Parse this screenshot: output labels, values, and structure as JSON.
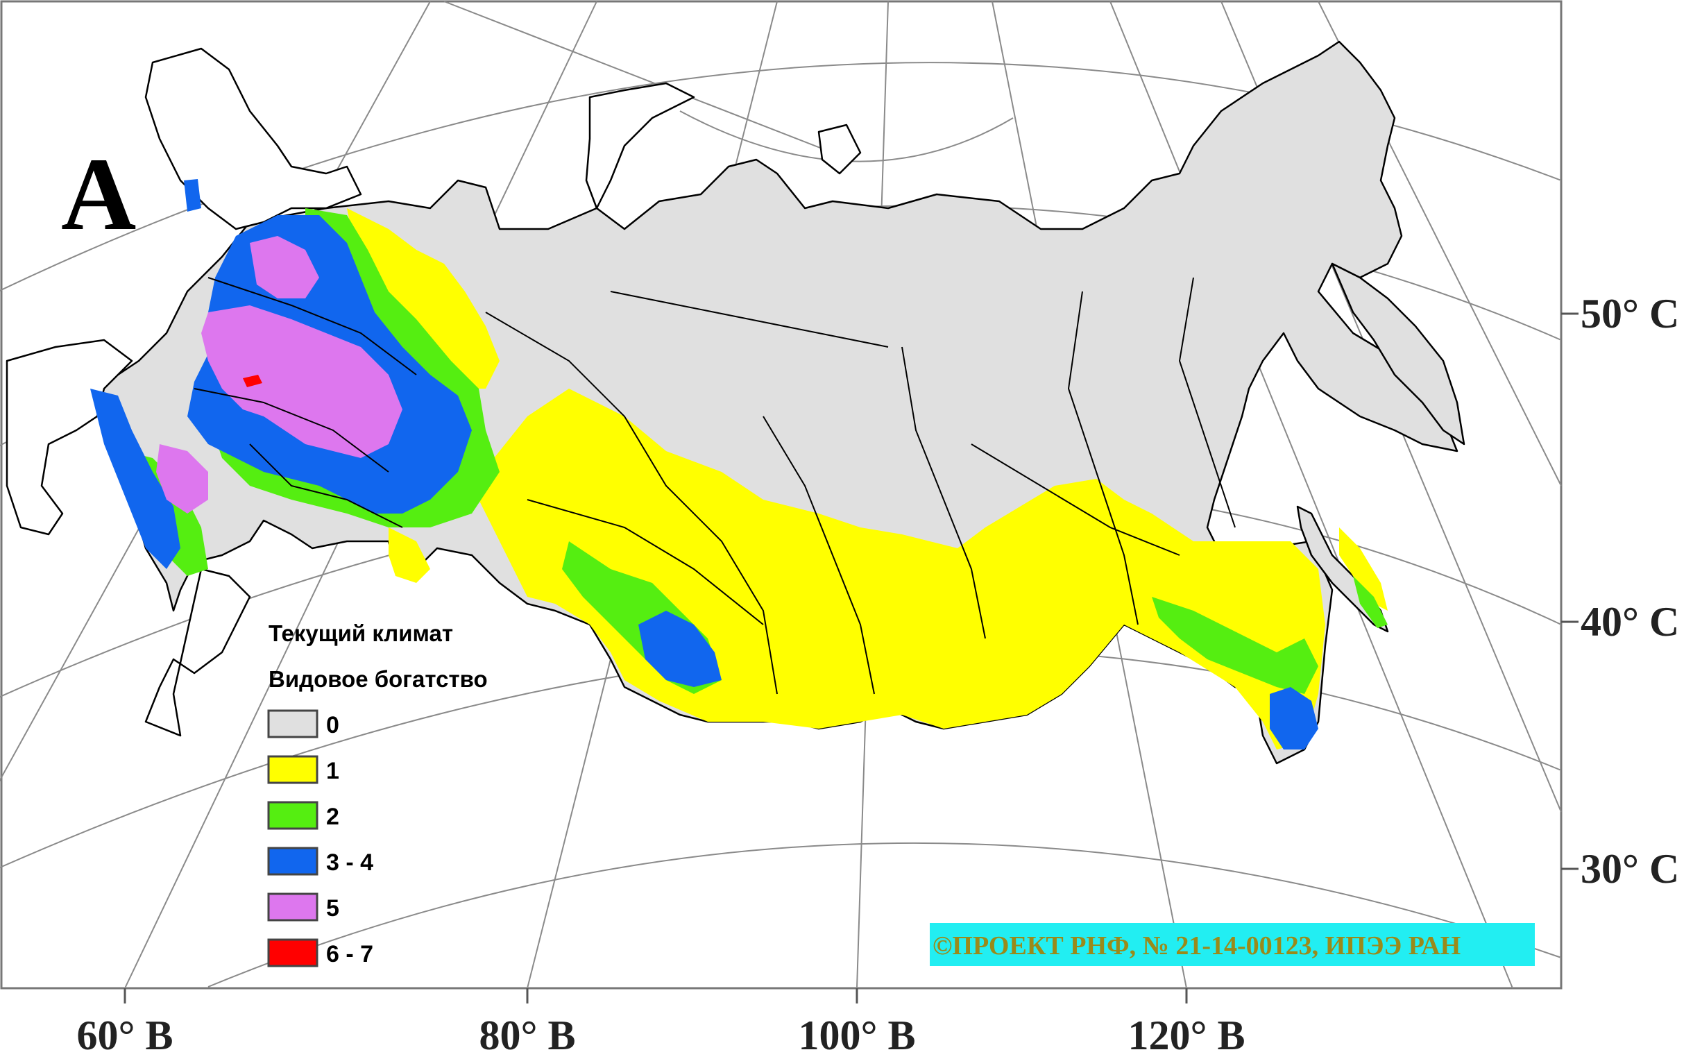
{
  "panel_letter": "A",
  "colors": {
    "land_zero": "#e0e0e0",
    "outline": "#000000",
    "graticule": "#8a8a8a",
    "credit_bg": "#22eef2"
  },
  "latitude_labels": [
    "50° С",
    "40° С",
    "30° С"
  ],
  "longitude_labels": [
    "60° В",
    "80° В",
    "100° В",
    "120° В"
  ],
  "legend": {
    "title_line1": "Текущий климат",
    "title_line2": "Видовое богатство",
    "items": [
      {
        "label": "0",
        "color": "#e0e0e0"
      },
      {
        "label": "1",
        "color": "#ffff00"
      },
      {
        "label": "2",
        "color": "#55ee11"
      },
      {
        "label": "3 - 4",
        "color": "#1166ee"
      },
      {
        "label": "5",
        "color": "#dd77ee"
      },
      {
        "label": "6 - 7",
        "color": "#ff0000"
      }
    ]
  },
  "credit": "©ПРОЕКТ РНФ, № 21-14-00123, ИПЭЭ РАН"
}
